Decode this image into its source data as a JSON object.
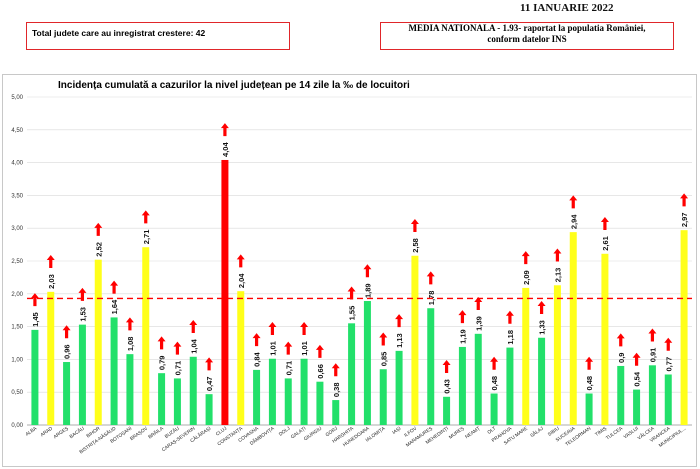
{
  "header": {
    "date": "11 IANUARIE 2022",
    "counties_increase": "Total judete care au inregistrat crestere: 42",
    "national_average_line1": "MEDIA NATIONALA - 1.93-  raportat la populatia României,",
    "national_average_line2": "conform datelor INS"
  },
  "chart_data": {
    "type": "bar",
    "title": "Incidența cumulată a cazurilor la nivel județean pe 14 zile la ‰ de locuitori",
    "categories": [
      "ALBA",
      "ARAD",
      "ARGEȘ",
      "BACĂU",
      "BIHOR",
      "BISTRIȚA-NĂSĂUD",
      "BOTOȘANI",
      "BRAȘOV",
      "BRĂILA",
      "BUZĂU",
      "CARAȘ-SEVERIN",
      "CĂLĂRAȘI",
      "CLUJ",
      "CONSTANȚA",
      "COVASNA",
      "DÂMBOVIȚA",
      "DOLJ",
      "GALAȚI",
      "GIURGIU",
      "GORJ",
      "HARGHITA",
      "HUNEDOARA",
      "IALOMIȚA",
      "IAȘI",
      "ILFOV",
      "MARAMUREȘ",
      "MEHEDINȚI",
      "MUREȘ",
      "NEAMȚ",
      "OLT",
      "PRAHOVA",
      "SATU MARE",
      "SĂLAJ",
      "SIBIU",
      "SUCEAVA",
      "TELEORMAN",
      "TIMIȘ",
      "TULCEA",
      "VASLUI",
      "VÂLCEA",
      "VRANCEA",
      "MUNICIPIUL..."
    ],
    "values": [
      1.45,
      2.03,
      0.96,
      1.53,
      2.52,
      1.64,
      1.08,
      2.71,
      0.79,
      0.71,
      1.04,
      0.47,
      4.04,
      2.04,
      0.84,
      1.01,
      0.71,
      1.01,
      0.66,
      0.38,
      1.55,
      1.89,
      0.85,
      1.13,
      2.58,
      1.78,
      0.43,
      1.19,
      1.39,
      0.48,
      1.18,
      2.09,
      1.33,
      2.13,
      2.94,
      0.48,
      2.61,
      0.9,
      0.54,
      0.91,
      0.77,
      2.97
    ],
    "value_labels": [
      "1,45",
      "2,03",
      "0,96",
      "1,53",
      "2,52",
      "1,64",
      "1,08",
      "2,71",
      "0,79",
      "0,71",
      "1,04",
      "0,47",
      "4,04",
      "2,04",
      "0,84",
      "1,01",
      "0,71",
      "1,01",
      "0,66",
      "0,38",
      "1,55",
      "1,89",
      "0,85",
      "1,13",
      "2,58",
      "1,78",
      "0,43",
      "1,19",
      "1,39",
      "0,48",
      "1,18",
      "2,09",
      "1,33",
      "2,13",
      "2,94",
      "0,48",
      "2,61",
      "0,9",
      "0,54",
      "0,91",
      "0,77",
      "2,97"
    ],
    "colors": [
      "green",
      "yellow",
      "green",
      "green",
      "yellow",
      "green",
      "green",
      "yellow",
      "green",
      "green",
      "green",
      "green",
      "red",
      "yellow",
      "green",
      "green",
      "green",
      "green",
      "green",
      "green",
      "green",
      "green",
      "green",
      "green",
      "yellow",
      "green",
      "green",
      "green",
      "green",
      "green",
      "green",
      "yellow",
      "green",
      "yellow",
      "yellow",
      "green",
      "yellow",
      "green",
      "green",
      "green",
      "green",
      "yellow"
    ],
    "palette": {
      "green": "#22e06a",
      "yellow": "#ffff1a",
      "red": "#ff0000",
      "arrow": "#ff0000",
      "average_line": "#ff0000"
    },
    "ylim": [
      0,
      5
    ],
    "yticks": [
      "0,00",
      "0,50",
      "1,00",
      "1,50",
      "2,00",
      "2,50",
      "3,00",
      "3,50",
      "4,00",
      "4,50",
      "5,00"
    ],
    "average": 1.93,
    "trend_icon": "up-arrow-icon",
    "legend": "none"
  }
}
